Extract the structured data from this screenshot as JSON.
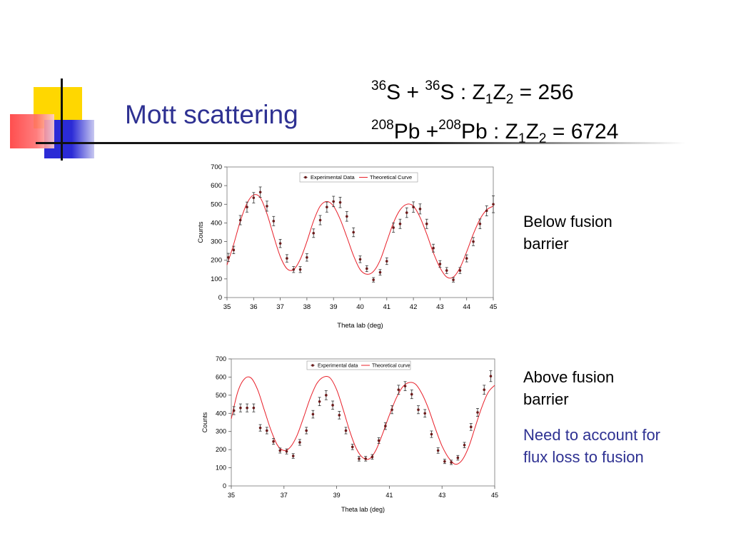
{
  "slide": {
    "title": "Mott scattering",
    "equation1": {
      "a_mass": "36",
      "a_el": "S",
      "plus": " + ",
      "b_mass": "36",
      "b_el": "S",
      "mid": " : Z",
      "s1": "1",
      "z2": "Z",
      "s2": "2",
      "rhs": " = 256"
    },
    "equation2": {
      "a_mass": "208",
      "a_el": "Pb",
      "plus": " +",
      "b_mass": "208",
      "b_el": "Pb",
      "mid": " : Z",
      "s1": "1",
      "z2": "Z",
      "s2": "2",
      "rhs": " = 6724"
    },
    "note1": {
      "line1": "Below fusion",
      "line2": "barrier"
    },
    "note2": {
      "line1": "Above fusion",
      "line2": "barrier"
    },
    "note3": {
      "line1": "Need to account for",
      "line2": "flux loss to fusion"
    },
    "colors": {
      "title": "#2e3192",
      "curve": "#e8202a",
      "marker": "#6b1a1a",
      "deco_yellow": "#ffd700",
      "deco_red": "#ff3b3b",
      "deco_blue": "#2b2bd6"
    }
  },
  "chart_data": [
    {
      "type": "scatter",
      "xlabel": "Theta lab (deg)",
      "ylabel": "Counts",
      "xlim": [
        35,
        45
      ],
      "ylim": [
        0,
        700
      ],
      "xticks": [
        35,
        36,
        37,
        38,
        39,
        40,
        41,
        42,
        43,
        44,
        45
      ],
      "yticks": [
        0,
        100,
        200,
        300,
        400,
        500,
        600,
        700
      ],
      "legend_placement": "top-right",
      "series": [
        {
          "name": "Experimental Data",
          "kind": "points",
          "x": [
            35.05,
            35.25,
            35.5,
            35.75,
            36.0,
            36.25,
            36.5,
            36.75,
            37.0,
            37.25,
            37.5,
            37.75,
            38.0,
            38.25,
            38.5,
            38.75,
            39.0,
            39.25,
            39.5,
            39.75,
            40.0,
            40.25,
            40.5,
            40.75,
            41.0,
            41.25,
            41.5,
            41.75,
            42.0,
            42.25,
            42.5,
            42.75,
            43.0,
            43.25,
            43.5,
            43.75,
            44.0,
            44.25,
            44.5,
            44.75,
            45.0
          ],
          "y": [
            215,
            255,
            415,
            485,
            535,
            565,
            490,
            410,
            290,
            210,
            150,
            150,
            215,
            345,
            415,
            485,
            515,
            510,
            435,
            350,
            205,
            155,
            95,
            135,
            195,
            375,
            395,
            455,
            485,
            475,
            395,
            265,
            180,
            145,
            95,
            145,
            210,
            300,
            395,
            465,
            500
          ],
          "err": [
            22,
            20,
            25,
            27,
            28,
            28,
            27,
            25,
            22,
            20,
            16,
            16,
            20,
            23,
            25,
            27,
            28,
            28,
            26,
            24,
            18,
            16,
            12,
            15,
            18,
            25,
            25,
            26,
            28,
            27,
            25,
            21,
            18,
            16,
            12,
            16,
            19,
            22,
            26,
            27,
            45
          ]
        },
        {
          "name": "Theoretical Curve",
          "kind": "line",
          "x": [
            35,
            35.25,
            35.5,
            35.75,
            36,
            36.25,
            36.5,
            36.75,
            37,
            37.25,
            37.5,
            37.75,
            38,
            38.25,
            38.5,
            38.75,
            39,
            39.25,
            39.5,
            39.75,
            40,
            40.25,
            40.5,
            40.75,
            41,
            41.25,
            41.5,
            41.75,
            42,
            42.25,
            42.5,
            42.75,
            43,
            43.25,
            43.5,
            43.75,
            44,
            44.25,
            44.5,
            44.75,
            45
          ],
          "y": [
            175,
            285,
            410,
            505,
            550,
            535,
            450,
            330,
            220,
            155,
            150,
            205,
            300,
            410,
            490,
            515,
            490,
            420,
            325,
            225,
            150,
            125,
            140,
            200,
            300,
            400,
            470,
            500,
            490,
            430,
            340,
            240,
            160,
            110,
            110,
            160,
            245,
            340,
            420,
            470,
            490
          ]
        }
      ]
    },
    {
      "type": "scatter",
      "xlabel": "Theta lab (deg)",
      "ylabel": "Counts",
      "xlim": [
        35,
        45
      ],
      "ylim": [
        0,
        700
      ],
      "xticks": [
        35,
        37,
        39,
        41,
        43,
        45
      ],
      "yticks": [
        0,
        100,
        200,
        300,
        400,
        500,
        600,
        700
      ],
      "legend_placement": "top-right",
      "series": [
        {
          "name": "Experimental data",
          "kind": "points",
          "x": [
            35.1,
            35.35,
            35.6,
            35.85,
            36.1,
            36.35,
            36.6,
            36.85,
            37.1,
            37.35,
            37.6,
            37.85,
            38.1,
            38.35,
            38.6,
            38.85,
            39.1,
            39.35,
            39.6,
            39.85,
            40.1,
            40.35,
            40.6,
            40.85,
            41.1,
            41.35,
            41.6,
            41.85,
            42.1,
            42.35,
            42.6,
            42.85,
            43.1,
            43.35,
            43.6,
            43.85,
            44.1,
            44.35,
            44.6,
            44.85
          ],
          "y": [
            415,
            430,
            430,
            430,
            320,
            305,
            245,
            195,
            190,
            165,
            240,
            305,
            395,
            465,
            500,
            445,
            390,
            305,
            215,
            150,
            150,
            160,
            250,
            330,
            420,
            530,
            550,
            505,
            420,
            400,
            285,
            195,
            135,
            130,
            155,
            225,
            325,
            405,
            530,
            605
          ],
          "err": [
            22,
            22,
            22,
            22,
            18,
            18,
            16,
            14,
            14,
            13,
            16,
            18,
            21,
            23,
            25,
            23,
            21,
            18,
            15,
            13,
            13,
            13,
            16,
            19,
            22,
            25,
            25,
            24,
            22,
            21,
            18,
            15,
            12,
            12,
            13,
            15,
            19,
            22,
            25,
            30
          ]
        },
        {
          "name": "Theoretical curve",
          "kind": "line",
          "x": [
            35,
            35.25,
            35.5,
            35.75,
            36,
            36.25,
            36.5,
            36.75,
            37,
            37.25,
            37.5,
            37.75,
            38,
            38.25,
            38.5,
            38.75,
            39,
            39.25,
            39.5,
            39.75,
            40,
            40.25,
            40.5,
            40.75,
            41,
            41.25,
            41.5,
            41.75,
            42,
            42.25,
            42.5,
            42.75,
            43,
            43.25,
            43.5,
            43.75,
            44,
            44.25,
            44.5,
            44.75,
            45
          ],
          "y": [
            370,
            520,
            590,
            595,
            530,
            420,
            310,
            225,
            195,
            215,
            280,
            380,
            485,
            565,
            600,
            595,
            530,
            420,
            300,
            205,
            155,
            150,
            200,
            290,
            390,
            480,
            545,
            570,
            560,
            505,
            420,
            315,
            220,
            155,
            120,
            140,
            210,
            320,
            430,
            515,
            555
          ]
        }
      ]
    }
  ]
}
